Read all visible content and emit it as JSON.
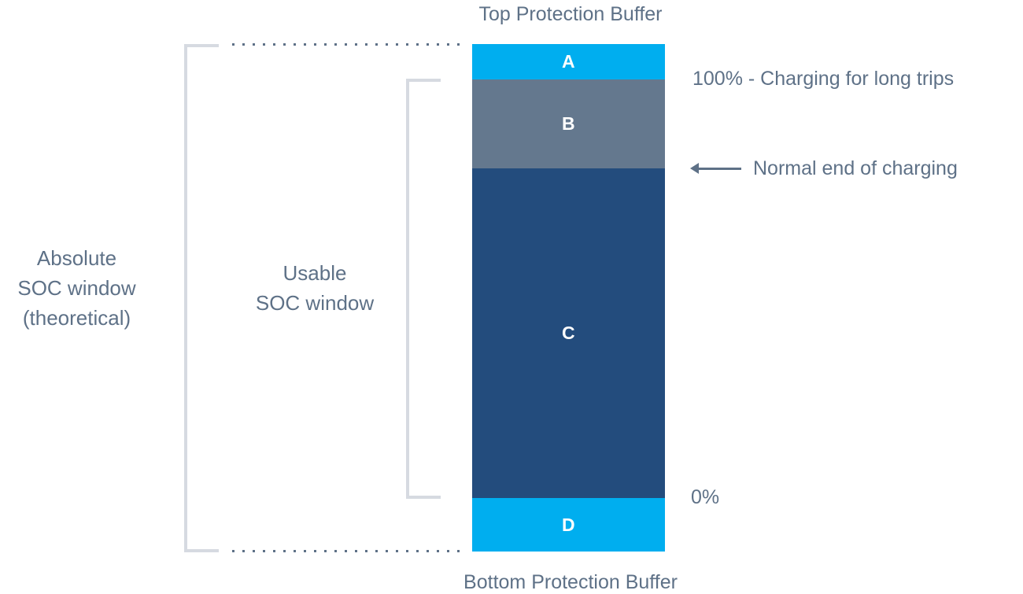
{
  "colors": {
    "cyan": "#00AEEF",
    "slate": "#64788E",
    "dark_blue": "#234C7D",
    "text": "#5E7187",
    "bracket": "#D6DAE1"
  },
  "titles": {
    "top": "Top Protection Buffer",
    "bottom": "Bottom Protection Buffer"
  },
  "left_labels": {
    "absolute_window": {
      "lines": [
        "Absolute",
        "SOC window",
        "(theoretical)"
      ]
    },
    "usable_window": {
      "lines": [
        "Usable",
        "SOC window"
      ]
    }
  },
  "bar": {
    "segments": [
      {
        "label": "A",
        "color": "#00AEEF"
      },
      {
        "label": "B",
        "color": "#64788E"
      },
      {
        "label": "C",
        "color": "#234C7D"
      },
      {
        "label": "D",
        "color": "#00AEEF"
      }
    ]
  },
  "annotations": {
    "soc_100": "100% - Charging for long trips",
    "normal_end_of_charging": "Normal end of charging",
    "soc_0": "0%"
  }
}
